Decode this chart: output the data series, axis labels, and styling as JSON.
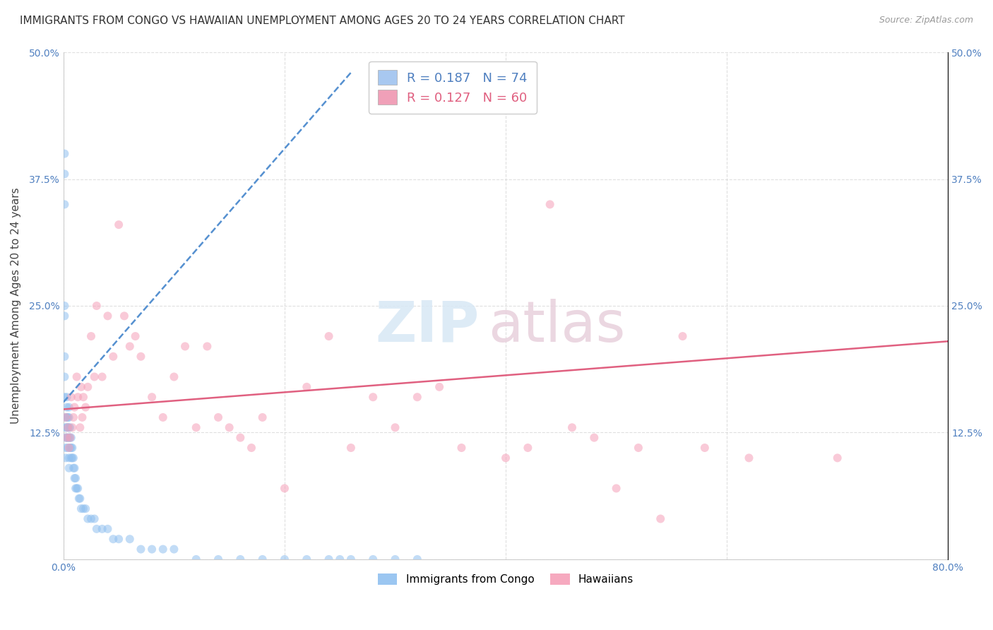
{
  "title": "IMMIGRANTS FROM CONGO VS HAWAIIAN UNEMPLOYMENT AMONG AGES 20 TO 24 YEARS CORRELATION CHART",
  "source": "Source: ZipAtlas.com",
  "ylabel": "Unemployment Among Ages 20 to 24 years",
  "xlim": [
    0.0,
    0.8
  ],
  "ylim": [
    0.0,
    0.5
  ],
  "legend1_R": "0.187",
  "legend1_N": "74",
  "legend2_R": "0.127",
  "legend2_N": "60",
  "legend1_color": "#a8c8f0",
  "legend2_color": "#f0a0b8",
  "blue_line_color": "#5590d0",
  "pink_line_color": "#e06080",
  "watermark_zip": "ZIP",
  "watermark_atlas": "atlas",
  "blue_scatter_color": "#90c0f0",
  "pink_scatter_color": "#f5a0b8",
  "blue_scatter_alpha": 0.55,
  "pink_scatter_alpha": 0.55,
  "scatter_size": 75,
  "blue_x": [
    0.001,
    0.001,
    0.001,
    0.001,
    0.001,
    0.001,
    0.001,
    0.001,
    0.002,
    0.002,
    0.002,
    0.002,
    0.002,
    0.003,
    0.003,
    0.003,
    0.003,
    0.003,
    0.004,
    0.004,
    0.004,
    0.004,
    0.005,
    0.005,
    0.005,
    0.005,
    0.005,
    0.005,
    0.006,
    0.006,
    0.006,
    0.007,
    0.007,
    0.007,
    0.008,
    0.008,
    0.009,
    0.009,
    0.01,
    0.01,
    0.011,
    0.011,
    0.012,
    0.013,
    0.014,
    0.015,
    0.016,
    0.018,
    0.02,
    0.022,
    0.025,
    0.028,
    0.03,
    0.035,
    0.04,
    0.045,
    0.05,
    0.06,
    0.07,
    0.08,
    0.09,
    0.1,
    0.12,
    0.14,
    0.16,
    0.18,
    0.2,
    0.22,
    0.24,
    0.25,
    0.26,
    0.28,
    0.3,
    0.32
  ],
  "blue_y": [
    0.4,
    0.38,
    0.35,
    0.25,
    0.24,
    0.2,
    0.18,
    0.16,
    0.14,
    0.13,
    0.12,
    0.11,
    0.1,
    0.16,
    0.15,
    0.14,
    0.13,
    0.12,
    0.14,
    0.13,
    0.12,
    0.11,
    0.15,
    0.14,
    0.13,
    0.12,
    0.1,
    0.09,
    0.13,
    0.12,
    0.11,
    0.12,
    0.11,
    0.1,
    0.11,
    0.1,
    0.1,
    0.09,
    0.09,
    0.08,
    0.08,
    0.07,
    0.07,
    0.07,
    0.06,
    0.06,
    0.05,
    0.05,
    0.05,
    0.04,
    0.04,
    0.04,
    0.03,
    0.03,
    0.03,
    0.02,
    0.02,
    0.02,
    0.01,
    0.01,
    0.01,
    0.01,
    0.0,
    0.0,
    0.0,
    0.0,
    0.0,
    0.0,
    0.0,
    0.0,
    0.0,
    0.0,
    0.0,
    0.0
  ],
  "pink_x": [
    0.002,
    0.003,
    0.004,
    0.005,
    0.006,
    0.007,
    0.008,
    0.009,
    0.01,
    0.012,
    0.013,
    0.015,
    0.016,
    0.017,
    0.018,
    0.02,
    0.022,
    0.025,
    0.028,
    0.03,
    0.035,
    0.04,
    0.045,
    0.05,
    0.055,
    0.06,
    0.065,
    0.07,
    0.08,
    0.09,
    0.1,
    0.11,
    0.12,
    0.13,
    0.14,
    0.15,
    0.16,
    0.17,
    0.18,
    0.2,
    0.22,
    0.24,
    0.26,
    0.28,
    0.3,
    0.32,
    0.34,
    0.36,
    0.4,
    0.42,
    0.44,
    0.46,
    0.48,
    0.5,
    0.52,
    0.54,
    0.56,
    0.58,
    0.62,
    0.7
  ],
  "pink_y": [
    0.14,
    0.12,
    0.13,
    0.11,
    0.12,
    0.16,
    0.13,
    0.14,
    0.15,
    0.18,
    0.16,
    0.13,
    0.17,
    0.14,
    0.16,
    0.15,
    0.17,
    0.22,
    0.18,
    0.25,
    0.18,
    0.24,
    0.2,
    0.33,
    0.24,
    0.21,
    0.22,
    0.2,
    0.16,
    0.14,
    0.18,
    0.21,
    0.13,
    0.21,
    0.14,
    0.13,
    0.12,
    0.11,
    0.14,
    0.07,
    0.17,
    0.22,
    0.11,
    0.16,
    0.13,
    0.16,
    0.17,
    0.11,
    0.1,
    0.11,
    0.35,
    0.13,
    0.12,
    0.07,
    0.11,
    0.04,
    0.22,
    0.11,
    0.1,
    0.1
  ],
  "blue_trend_x": [
    0.0,
    0.26
  ],
  "blue_trend_y": [
    0.155,
    0.48
  ],
  "pink_trend_x": [
    0.0,
    0.8
  ],
  "pink_trend_y": [
    0.148,
    0.215
  ],
  "background_color": "#ffffff",
  "title_fontsize": 11,
  "axis_label_fontsize": 11,
  "tick_fontsize": 10,
  "grid_color": "#d8d8d8",
  "grid_alpha": 0.8
}
